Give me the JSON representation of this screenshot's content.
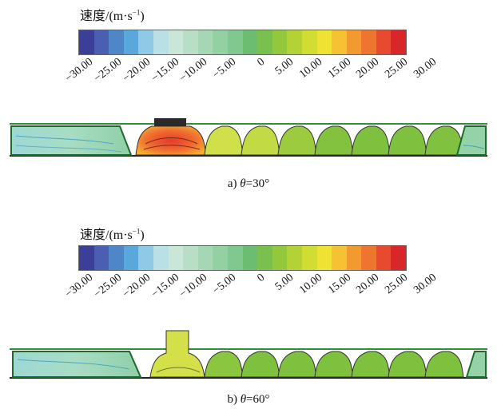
{
  "colorbar": {
    "colors": [
      "#3b3f98",
      "#4a5fb2",
      "#4f86c7",
      "#5aa7dc",
      "#8ec9e5",
      "#b9e0e5",
      "#c9e6d6",
      "#b8dfc6",
      "#a6d7b4",
      "#93d0a2",
      "#7fc890",
      "#6cbd72",
      "#79c04e",
      "#93c83d",
      "#b2d235",
      "#d1dd33",
      "#f0e232",
      "#f6c132",
      "#f29a30",
      "#ee7530",
      "#e84a2f",
      "#d9262b"
    ],
    "ticks": [
      "−30.00",
      "−25.00",
      "−20.00",
      "−15.00",
      "−10.00",
      "−5.00",
      "0",
      "5.00",
      "10.00",
      "15.00",
      "20.00",
      "25.00",
      "30.00"
    ]
  },
  "panels": [
    {
      "title_text": "速度/(m·s",
      "title_sup": "−1",
      "title_close": ")",
      "caption_prefix": "a) ",
      "caption_theta": "θ",
      "caption_value": "=30°"
    },
    {
      "title_text": "速度/(m·s",
      "title_sup": "−1",
      "title_close": ")",
      "caption_prefix": "b) ",
      "caption_theta": "θ",
      "caption_value": "=60°"
    }
  ]
}
